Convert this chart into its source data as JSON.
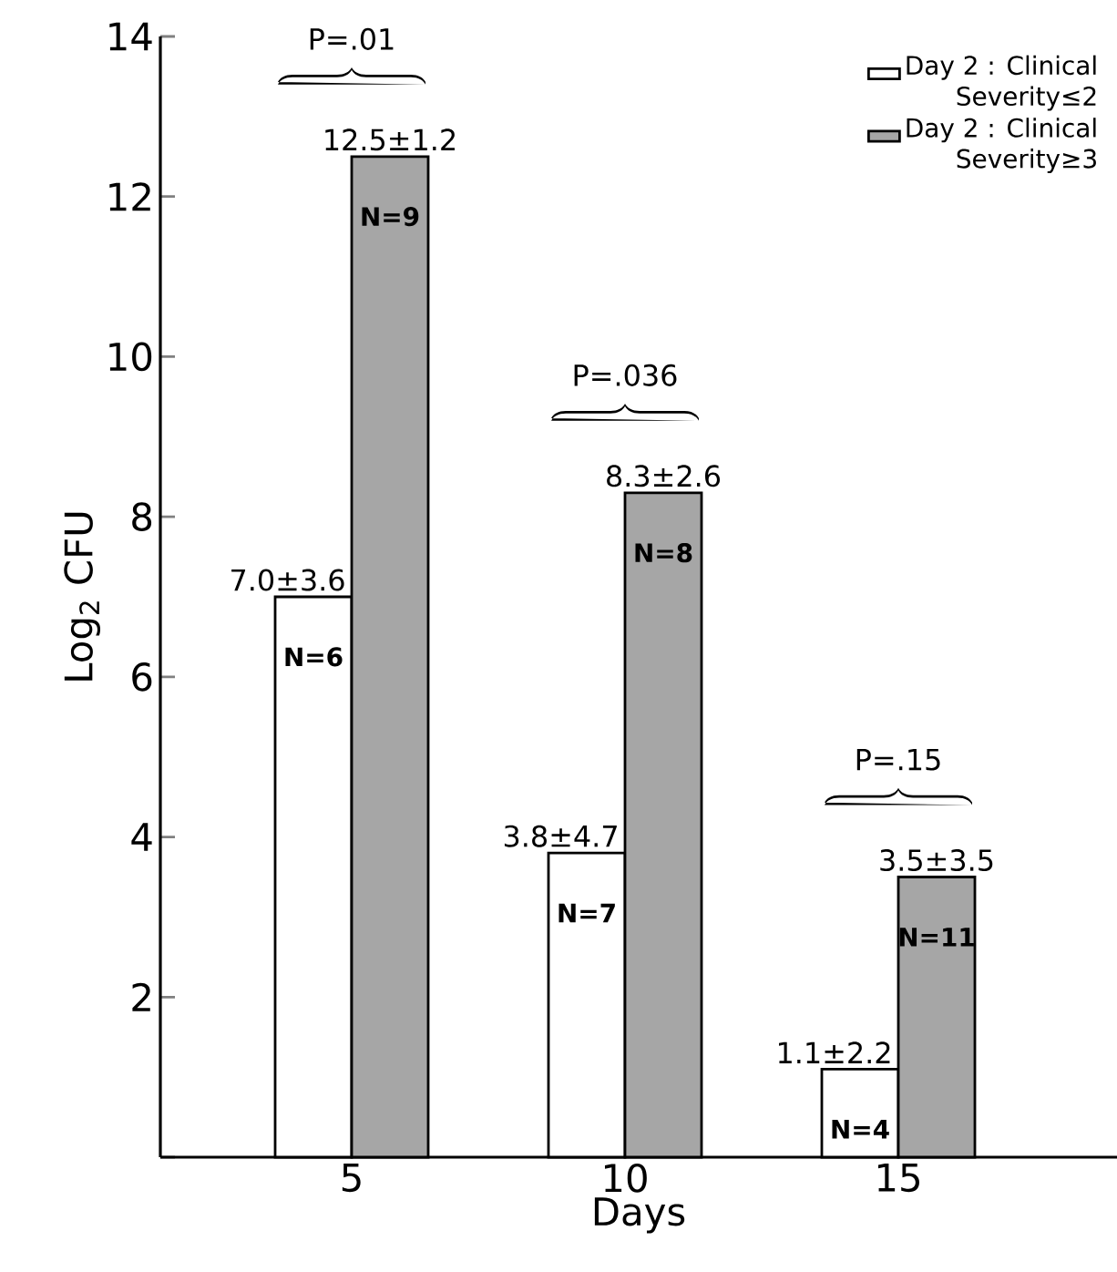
{
  "chart_data": {
    "type": "bar",
    "xlabel": "Days",
    "ylabel": "Log$_{2}$ CFU",
    "categories": [
      "5",
      "10",
      "15"
    ],
    "series": [
      {
        "name": "Day 2 : Clinical Severity≤2",
        "color": "#ffffff",
        "values": [
          7.0,
          3.8,
          1.1
        ],
        "value_labels": [
          "7.0±3.6",
          "3.8±4.7",
          "1.1±2.2"
        ]
      },
      {
        "name": "Day 2 : Clinical Severity≥3",
        "color": "#a6a6a6",
        "values": [
          12.5,
          8.3,
          3.5
        ],
        "value_labels": [
          "12.5±1.2",
          "8.3±2.6",
          "3.5±3.5"
        ]
      }
    ],
    "annotations": [
      "P=.01",
      "P=.036",
      "P=.15",
      "N=6",
      "N=7",
      "N=4",
      "N=9",
      "N=8",
      "N=11"
    ],
    "ylim": [
      0,
      14
    ],
    "yticks": [
      {
        "value": 0,
        "label": null
      },
      2,
      4,
      6,
      8,
      10,
      12,
      14
    ],
    "grid": false,
    "legend": "top right"
  }
}
